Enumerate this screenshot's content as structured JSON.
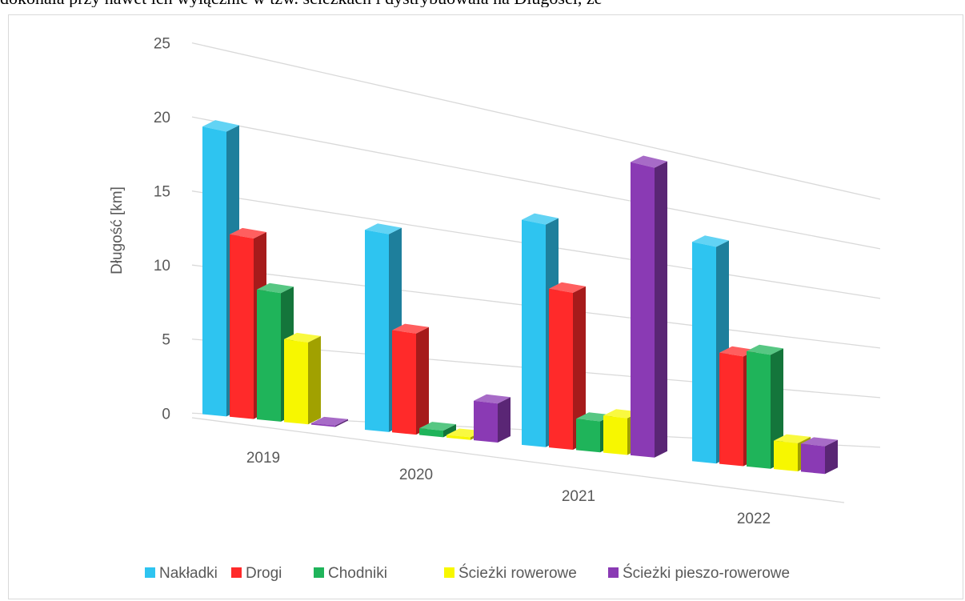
{
  "top_text": "dokonała przy nawet ich wyłącznie w tzw. ścieżkach i dystrybuowała na Długości, ze",
  "chart_data": {
    "type": "bar",
    "projection": "3d-clustered",
    "title": "",
    "ylabel": "Długość [km]",
    "xlabel": "",
    "ylim": [
      0,
      25
    ],
    "y_ticks": [
      "0",
      "5",
      "10",
      "15",
      "20",
      "25"
    ],
    "grid": true,
    "legend_position": "bottom",
    "categories": [
      "2019",
      "2020",
      "2021",
      "2022"
    ],
    "series": [
      {
        "name": "Nakładki",
        "color": "#2ec4f0",
        "values": [
          19.5,
          14.5,
          17.5,
          18.5
        ]
      },
      {
        "name": "Drogi",
        "color": "#ff2a2a",
        "values": [
          12.5,
          7.5,
          12.5,
          9.5
        ]
      },
      {
        "name": "Chodniki",
        "color": "#1fb45a",
        "values": [
          9.0,
          0.5,
          2.5,
          10.0
        ]
      },
      {
        "name": "Ścieżki rowerowe",
        "color": "#f7f700",
        "values": [
          5.8,
          0.2,
          3.0,
          2.5
        ]
      },
      {
        "name": "Ścieżki pieszo-rowerowe",
        "color": "#8a3ab4",
        "values": [
          0.1,
          3.0,
          24.0,
          2.5
        ]
      }
    ]
  }
}
